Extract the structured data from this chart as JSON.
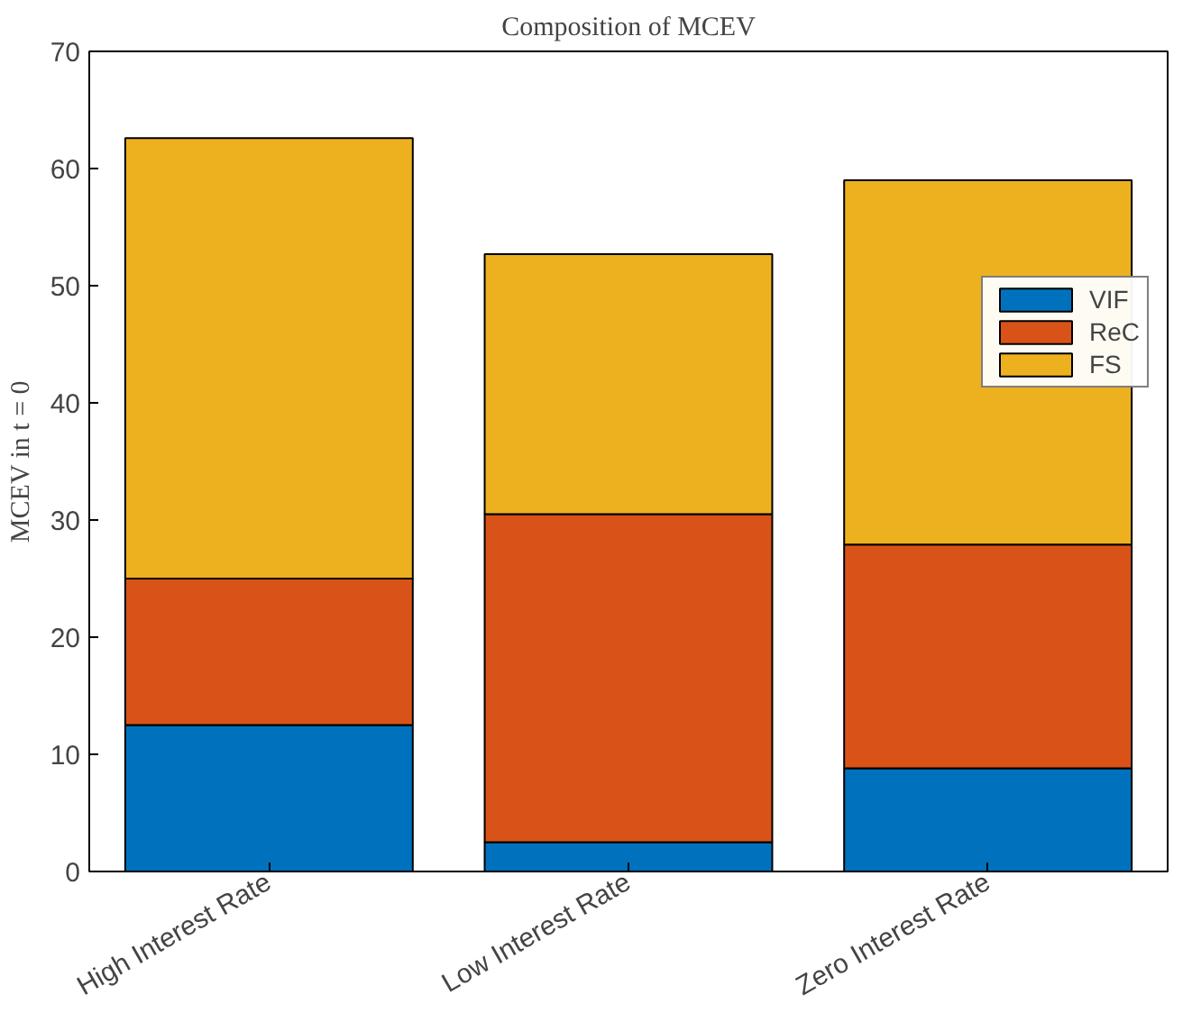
{
  "chart_data": {
    "type": "bar",
    "title": "Composition of MCEV",
    "ylabel": "MCEV in t = 0",
    "categories": [
      "High Interest Rate",
      "Low Interest Rate",
      "Zero Interest Rate"
    ],
    "stacked": true,
    "series": [
      {
        "name": "VIF",
        "color": "#0072bd",
        "values": [
          12.5,
          2.5,
          8.8
        ]
      },
      {
        "name": "ReC",
        "color": "#d95319",
        "values": [
          12.5,
          28,
          19.1
        ]
      },
      {
        "name": "FS",
        "color": "#edb120",
        "values": [
          37.6,
          22.2,
          31.1
        ]
      }
    ],
    "ylim": [
      0,
      70
    ],
    "yticks": [
      0,
      10,
      20,
      30,
      40,
      50,
      60,
      70
    ],
    "grid": false,
    "legend": "top right"
  }
}
